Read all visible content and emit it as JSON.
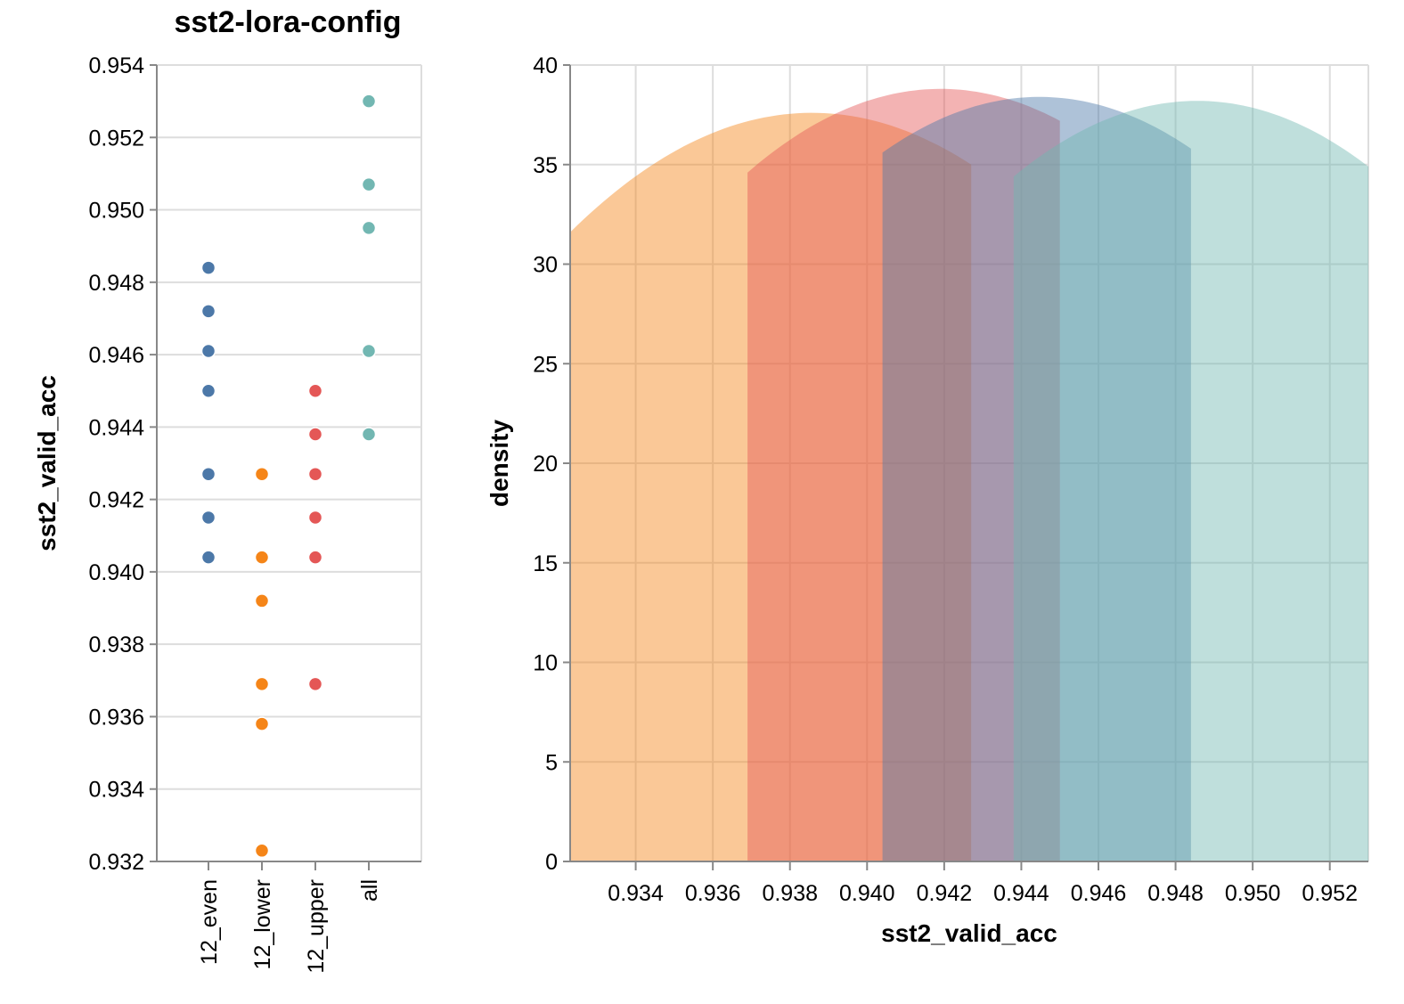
{
  "chart_data": [
    {
      "type": "scatter",
      "title": "sst2-lora-config",
      "xlabel": "",
      "ylabel": "sst2_valid_acc",
      "ylim": [
        0.932,
        0.954
      ],
      "yticks": [
        "0.932",
        "0.934",
        "0.936",
        "0.938",
        "0.940",
        "0.942",
        "0.944",
        "0.946",
        "0.948",
        "0.950",
        "0.952",
        "0.954"
      ],
      "grid": true,
      "categories": [
        "12_even",
        "12_lower",
        "12_upper",
        "all"
      ],
      "series": [
        {
          "name": "12_even",
          "color": "#4c78a8",
          "values": [
            0.9484,
            0.9472,
            0.9461,
            0.945,
            0.9427,
            0.9415,
            0.9404
          ]
        },
        {
          "name": "12_lower",
          "color": "#f58518",
          "values": [
            0.9427,
            0.9404,
            0.9392,
            0.9369,
            0.9358,
            0.9323
          ]
        },
        {
          "name": "12_upper",
          "color": "#e45756",
          "values": [
            0.945,
            0.9438,
            0.9427,
            0.9415,
            0.9404,
            0.9369
          ]
        },
        {
          "name": "all",
          "color": "#72b7b2",
          "values": [
            0.953,
            0.9507,
            0.9495,
            0.9461,
            0.9438
          ]
        }
      ]
    },
    {
      "type": "area",
      "title": "",
      "xlabel": "sst2_valid_acc",
      "ylabel": "density",
      "xlim": [
        0.9323,
        0.953
      ],
      "ylim": [
        0,
        40
      ],
      "xticks": [
        "0.934",
        "0.936",
        "0.938",
        "0.940",
        "0.942",
        "0.944",
        "0.946",
        "0.948",
        "0.950",
        "0.952"
      ],
      "yticks": [
        "0",
        "5",
        "10",
        "15",
        "20",
        "25",
        "30",
        "35",
        "40"
      ],
      "grid": true,
      "series": [
        {
          "name": "12_lower",
          "color": "#f58518",
          "x": [
            0.9323,
            0.9386,
            0.9427
          ],
          "density": [
            31.6,
            37.6,
            35.0
          ]
        },
        {
          "name": "12_upper",
          "color": "#e45756",
          "x": [
            0.9369,
            0.942,
            0.945
          ],
          "density": [
            34.6,
            38.8,
            37.2
          ]
        },
        {
          "name": "12_even",
          "color": "#4c78a8",
          "x": [
            0.9404,
            0.9445,
            0.9484
          ],
          "density": [
            35.6,
            38.4,
            35.8
          ]
        },
        {
          "name": "all",
          "color": "#72b7b2",
          "x": [
            0.9438,
            0.9485,
            0.953
          ],
          "density": [
            34.4,
            38.2,
            34.9
          ]
        }
      ]
    }
  ]
}
